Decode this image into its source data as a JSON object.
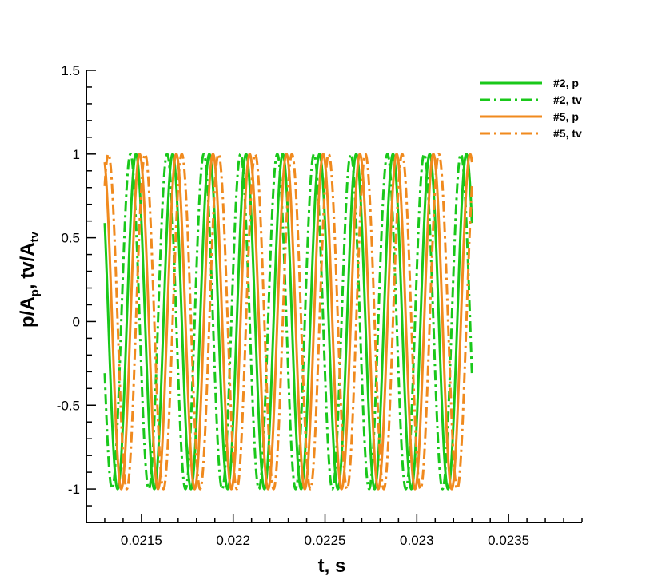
{
  "chart_data": {
    "type": "line",
    "xlabel": "t, s",
    "ylabel": {
      "base": "p/A",
      "sub1": "p",
      "mid": ", tv/A",
      "sub2": "tv"
    },
    "xlim": [
      0.0212,
      0.0239
    ],
    "ylim": [
      -1.2,
      1.5
    ],
    "x_ticks": [
      {
        "v": 0.0215,
        "label": "0.0215"
      },
      {
        "v": 0.022,
        "label": "0.022"
      },
      {
        "v": 0.0225,
        "label": "0.0225"
      },
      {
        "v": 0.023,
        "label": "0.023"
      },
      {
        "v": 0.0235,
        "label": "0.0235"
      }
    ],
    "y_ticks": [
      {
        "v": 1.5,
        "label": "1.5"
      },
      {
        "v": 1,
        "label": "1"
      },
      {
        "v": 0.5,
        "label": "0.5"
      },
      {
        "v": 0,
        "label": "0"
      },
      {
        "v": -0.5,
        "label": "-0.5"
      },
      {
        "v": -1,
        "label": "-1"
      }
    ],
    "grid": false,
    "legend_position": "top-right",
    "x_range": [
      0.0213,
      0.0233
    ],
    "period": 0.0002,
    "series": [
      {
        "name": "#2, p",
        "color": "#19c81a",
        "style": "solid",
        "peak_t": 0.02147
      },
      {
        "name": "#2, tv",
        "color": "#19c81a",
        "style": "dashdot",
        "peak_t": 0.02144
      },
      {
        "name": "#5, p",
        "color": "#f08a1e",
        "style": "solid",
        "peak_t": 0.02129
      },
      {
        "name": "#5, tv",
        "color": "#f08a1e",
        "style": "dashdot",
        "peak_t": 0.02132
      }
    ]
  }
}
